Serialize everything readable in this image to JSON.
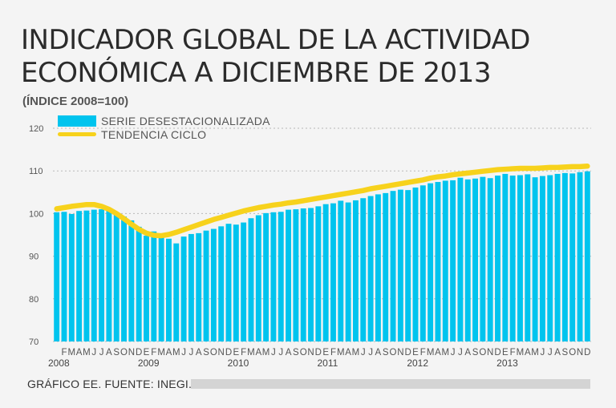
{
  "header": {
    "title_line1": "INDICADOR GLOBAL DE LA ACTIVIDAD",
    "title_line2": "ECONÓMICA A DICIEMBRE DE 2013",
    "subtitle": "(ÍNDICE 2008=100)"
  },
  "footer": {
    "source": "GRÁFICO EE. FUENTE: INEGI."
  },
  "colors": {
    "bar": "#00c4ee",
    "trend": "#f7d21c",
    "grid": "#b9b9b9"
  },
  "chart_data": {
    "type": "bar",
    "title": "INDICADOR GLOBAL DE LA ACTIVIDAD ECONÓMICA A DICIEMBRE DE 2013",
    "subtitle": "(ÍNDICE 2008=100)",
    "ylim": [
      70,
      120
    ],
    "yticks": [
      70,
      80,
      90,
      100,
      110,
      120
    ],
    "legend": {
      "position": "top-left",
      "entries": [
        {
          "name": "SERIE DESESTACIONALIZADA",
          "kind": "bar"
        },
        {
          "name": "TENDENCIA CICLO",
          "kind": "line"
        }
      ]
    },
    "years": [
      "2008",
      "2009",
      "2010",
      "2011",
      "2012",
      "2013"
    ],
    "month_letters": [
      "E",
      "F",
      "M",
      "A",
      "M",
      "J",
      "J",
      "A",
      "S",
      "O",
      "N",
      "D"
    ],
    "series": [
      {
        "name": "SERIE DESESTACIONALIZADA",
        "type": "bar",
        "values": [
          100.3,
          100.4,
          99.9,
          100.6,
          100.7,
          100.9,
          101.0,
          100.6,
          99.7,
          99.3,
          98.4,
          96.9,
          94.8,
          95.8,
          94.4,
          94.1,
          93.0,
          94.6,
          95.2,
          95.4,
          96.0,
          96.4,
          97.0,
          97.6,
          97.4,
          97.9,
          98.9,
          99.6,
          100.1,
          100.3,
          100.4,
          100.9,
          101.0,
          101.2,
          101.3,
          101.7,
          102.2,
          102.4,
          103.0,
          102.6,
          103.1,
          103.6,
          104.1,
          104.5,
          104.8,
          105.3,
          105.6,
          105.5,
          106.1,
          106.6,
          107.1,
          107.4,
          107.7,
          107.8,
          108.4,
          108.0,
          108.2,
          108.6,
          108.3,
          108.9,
          109.3,
          108.9,
          109.0,
          109.2,
          108.5,
          108.8,
          109.0,
          109.3,
          109.5,
          109.4,
          109.7,
          109.9
        ]
      },
      {
        "name": "TENDENCIA CICLO",
        "type": "line",
        "values": [
          101.1,
          101.4,
          101.7,
          101.9,
          102.1,
          102.1,
          101.7,
          101.0,
          100.0,
          98.8,
          97.5,
          96.3,
          95.4,
          94.9,
          94.8,
          95.1,
          95.6,
          96.2,
          96.8,
          97.4,
          98.0,
          98.6,
          99.1,
          99.6,
          100.1,
          100.6,
          101.0,
          101.4,
          101.7,
          102.0,
          102.2,
          102.5,
          102.7,
          103.0,
          103.3,
          103.6,
          103.9,
          104.2,
          104.5,
          104.8,
          105.1,
          105.4,
          105.8,
          106.1,
          106.4,
          106.7,
          107.0,
          107.3,
          107.6,
          107.9,
          108.3,
          108.6,
          108.8,
          109.1,
          109.3,
          109.5,
          109.7,
          109.9,
          110.1,
          110.3,
          110.4,
          110.5,
          110.6,
          110.6,
          110.6,
          110.7,
          110.8,
          110.8,
          110.9,
          111.0,
          111.0,
          111.1
        ]
      }
    ]
  }
}
